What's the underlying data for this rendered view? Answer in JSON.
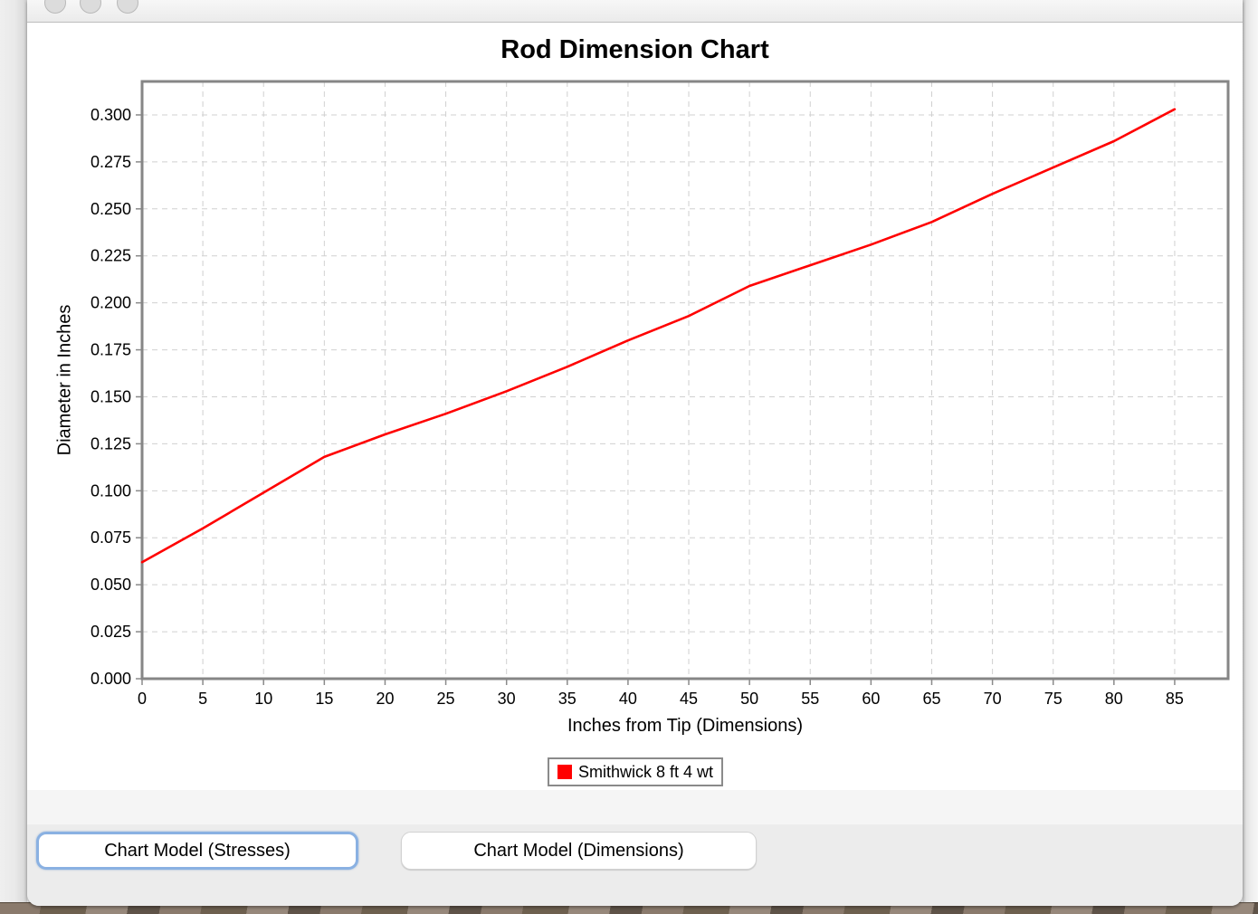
{
  "window": {
    "controls": {
      "close": "close",
      "minimize": "minimize",
      "zoom": "zoom"
    }
  },
  "chart_data": {
    "type": "line",
    "title": "Rod Dimension Chart",
    "xlabel": "Inches from Tip (Dimensions)",
    "ylabel": "Diameter in Inches",
    "grid": "dashed",
    "legend_position": "bottom",
    "xlim": [
      0,
      89.4
    ],
    "ylim": [
      0,
      0.3178
    ],
    "x_ticks": [
      "0",
      "5",
      "10",
      "15",
      "20",
      "25",
      "30",
      "35",
      "40",
      "45",
      "50",
      "55",
      "60",
      "65",
      "70",
      "75",
      "80",
      "85"
    ],
    "y_ticks": [
      "0.000",
      "0.025",
      "0.050",
      "0.075",
      "0.100",
      "0.125",
      "0.150",
      "0.175",
      "0.200",
      "0.225",
      "0.250",
      "0.275",
      "0.300"
    ],
    "series": [
      {
        "name": "Smithwick 8 ft 4 wt",
        "color": "#ff0000",
        "x": [
          0,
          5,
          10,
          15,
          20,
          25,
          30,
          35,
          40,
          45,
          50,
          55,
          60,
          65,
          70,
          75,
          80,
          85
        ],
        "y": [
          0.062,
          0.08,
          0.099,
          0.118,
          0.13,
          0.141,
          0.153,
          0.166,
          0.18,
          0.193,
          0.209,
          0.22,
          0.231,
          0.243,
          0.258,
          0.272,
          0.286,
          0.303
        ]
      }
    ]
  },
  "legend": {
    "label": "Smithwick 8 ft 4 wt",
    "swatch_color": "#ff0000"
  },
  "buttons": [
    {
      "label": "Chart Model (Stresses)",
      "focused": true
    },
    {
      "label": "Chart Model (Dimensions)",
      "focused": false
    }
  ],
  "colors": {
    "series_red": "#ff0000",
    "plot_frame": "#868686",
    "gridline": "#d0d0d0",
    "focus_ring_blue": "#8ab1e2",
    "panel_white": "#ffffff",
    "window_gray": "#ececec"
  }
}
